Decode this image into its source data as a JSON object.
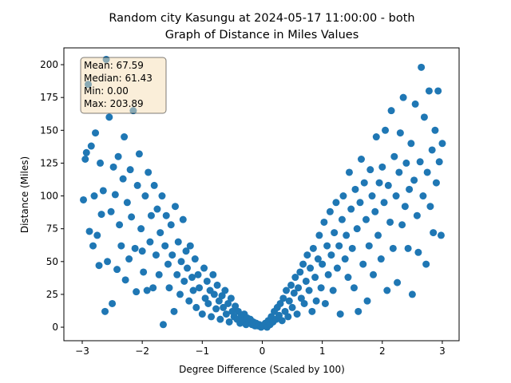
{
  "chart_data": {
    "type": "scatter",
    "title": [
      "Random city Kasungu at 2024-05-17 11:00:00  - both",
      "Graph of Distance in Miles Values"
    ],
    "x_label": "Degree Difference (Scaled by 100)",
    "y_label": "Distance (Miles)",
    "annotations": [
      "Mean: 67.59",
      "Median: 61.43",
      "Min: 0.00",
      "Max: 203.89"
    ],
    "color": "#1f77b4",
    "xlim": [
      -3.306,
      3.28
    ],
    "ylim": [
      -10.3,
      212.8
    ],
    "xticks": [
      {
        "value": -3,
        "label": "−3"
      },
      {
        "value": -2,
        "label": "−2"
      },
      {
        "value": -1,
        "label": "−1"
      },
      0,
      1,
      2,
      3
    ],
    "yticks": [
      0,
      25,
      50,
      75,
      100,
      125,
      150,
      175,
      200
    ],
    "x": [
      -2.98,
      -2.95,
      -2.93,
      -2.9,
      -2.88,
      -2.85,
      -2.82,
      -2.8,
      -2.78,
      -2.75,
      -2.72,
      -2.7,
      -2.68,
      -2.65,
      -2.62,
      -2.6,
      -2.58,
      -2.55,
      -2.52,
      -2.5,
      -2.48,
      -2.45,
      -2.42,
      -2.4,
      -2.38,
      -2.35,
      -2.32,
      -2.3,
      -2.28,
      -2.25,
      -2.22,
      -2.2,
      -2.18,
      -2.15,
      -2.12,
      -2.1,
      -2.08,
      -2.05,
      -2.02,
      -2.0,
      -1.98,
      -1.95,
      -1.92,
      -1.9,
      -1.87,
      -1.85,
      -1.82,
      -1.8,
      -1.77,
      -1.75,
      -1.72,
      -1.7,
      -1.67,
      -1.65,
      -1.62,
      -1.6,
      -1.57,
      -1.55,
      -1.52,
      -1.5,
      -1.47,
      -1.45,
      -1.42,
      -1.4,
      -1.37,
      -1.35,
      -1.32,
      -1.3,
      -1.27,
      -1.25,
      -1.22,
      -1.2,
      -1.17,
      -1.15,
      -1.12,
      -1.1,
      -1.07,
      -1.05,
      -1.0,
      -0.97,
      -0.95,
      -0.92,
      -0.9,
      -0.87,
      -0.85,
      -0.82,
      -0.8,
      -0.77,
      -0.75,
      -0.72,
      -0.7,
      -0.67,
      -0.65,
      -0.62,
      -0.6,
      -0.57,
      -0.55,
      -0.52,
      -0.5,
      -0.47,
      -0.45,
      -0.42,
      -0.4,
      -0.37,
      -0.35,
      -0.32,
      -0.3,
      -0.27,
      -0.25,
      -0.22,
      -0.2,
      -0.17,
      -0.15,
      -0.12,
      -0.1,
      -0.07,
      -0.05,
      -0.02,
      0.02,
      0.05,
      0.08,
      0.1,
      0.13,
      0.15,
      0.18,
      0.2,
      0.23,
      0.25,
      0.28,
      0.3,
      0.33,
      0.35,
      0.38,
      0.4,
      0.43,
      0.45,
      0.48,
      0.5,
      0.53,
      0.55,
      0.58,
      0.6,
      0.63,
      0.65,
      0.68,
      0.7,
      0.73,
      0.75,
      0.78,
      0.8,
      0.83,
      0.85,
      0.88,
      0.9,
      0.93,
      0.95,
      0.98,
      1.0,
      1.03,
      1.05,
      1.08,
      1.1,
      1.13,
      1.15,
      1.18,
      1.2,
      1.23,
      1.25,
      1.28,
      1.3,
      1.33,
      1.35,
      1.38,
      1.4,
      1.43,
      1.45,
      1.48,
      1.5,
      1.53,
      1.55,
      1.58,
      1.6,
      1.63,
      1.65,
      1.68,
      1.7,
      1.73,
      1.75,
      1.78,
      1.8,
      1.83,
      1.85,
      1.88,
      1.9,
      1.93,
      1.95,
      1.98,
      2.0,
      2.03,
      2.05,
      2.08,
      2.1,
      2.13,
      2.15,
      2.18,
      2.2,
      2.23,
      2.25,
      2.28,
      2.3,
      2.33,
      2.35,
      2.38,
      2.4,
      2.43,
      2.45,
      2.48,
      2.5,
      2.53,
      2.55,
      2.58,
      2.6,
      2.63,
      2.65,
      2.68,
      2.7,
      2.73,
      2.75,
      2.78,
      2.8,
      2.83,
      2.85,
      2.88,
      2.9,
      2.93,
      2.95,
      2.98,
      3.0
    ],
    "values": [
      97,
      128,
      133,
      185,
      73,
      138,
      62,
      100,
      148,
      70,
      47,
      125,
      86,
      104,
      12,
      204,
      50,
      160,
      88,
      18,
      122,
      101,
      44,
      130,
      78,
      62,
      113,
      145,
      36,
      95,
      52,
      120,
      84,
      165,
      60,
      27,
      108,
      132,
      75,
      58,
      42,
      100,
      28,
      118,
      65,
      85,
      30,
      108,
      55,
      90,
      40,
      72,
      100,
      2,
      62,
      85,
      48,
      30,
      78,
      55,
      12,
      92,
      40,
      65,
      25,
      50,
      82,
      35,
      58,
      45,
      20,
      62,
      38,
      28,
      52,
      15,
      40,
      30,
      10,
      45,
      22,
      35,
      18,
      28,
      8,
      40,
      25,
      14,
      32,
      20,
      6,
      24,
      15,
      28,
      10,
      18,
      4,
      22,
      12,
      8,
      16,
      6,
      12,
      3,
      9,
      5,
      10,
      2,
      7,
      4,
      6,
      2,
      4,
      1,
      3,
      1,
      2,
      0,
      1,
      3,
      0,
      5,
      2,
      8,
      4,
      12,
      6,
      15,
      9,
      18,
      5,
      22,
      12,
      28,
      8,
      20,
      32,
      15,
      26,
      38,
      10,
      30,
      42,
      22,
      48,
      18,
      35,
      55,
      28,
      45,
      12,
      60,
      38,
      20,
      52,
      70,
      30,
      48,
      80,
      18,
      62,
      40,
      88,
      55,
      28,
      72,
      95,
      45,
      62,
      10,
      82,
      100,
      52,
      70,
      38,
      118,
      90,
      60,
      30,
      105,
      75,
      12,
      95,
      128,
      48,
      110,
      82,
      20,
      62,
      120,
      100,
      40,
      88,
      145,
      70,
      110,
      52,
      122,
      95,
      150,
      28,
      108,
      80,
      165,
      60,
      130,
      100,
      34,
      118,
      148,
      78,
      175,
      92,
      125,
      60,
      105,
      140,
      25,
      112,
      170,
      85,
      57,
      126,
      198,
      100,
      160,
      48,
      118,
      180,
      92,
      135,
      72,
      150,
      110,
      180,
      126,
      70,
      140
    ]
  }
}
